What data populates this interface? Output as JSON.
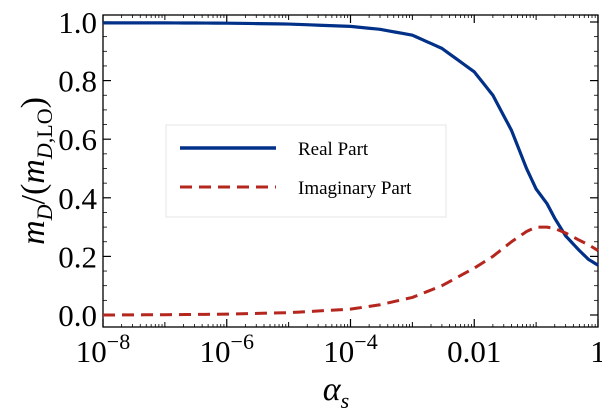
{
  "chart_data": {
    "type": "line",
    "xscale": "log",
    "xlim": [
      1e-08,
      1
    ],
    "ylim": [
      0,
      1
    ],
    "grid": false,
    "legend_position": "center-left",
    "xlabel": "α_s",
    "ylabel": "m_D/(m_D,LO)",
    "x_ticks": [
      {
        "value": 1e-08,
        "base": "10",
        "exp": "−8"
      },
      {
        "value": 1e-06,
        "base": "10",
        "exp": "−6"
      },
      {
        "value": 0.0001,
        "base": "10",
        "exp": "−4"
      },
      {
        "value": 0.01,
        "label": "0.01"
      },
      {
        "value": 1,
        "label": "1"
      }
    ],
    "y_ticks": [
      {
        "value": 0.0,
        "label": "0.0"
      },
      {
        "value": 0.2,
        "label": "0.2"
      },
      {
        "value": 0.4,
        "label": "0.4"
      },
      {
        "value": 0.6,
        "label": "0.6"
      },
      {
        "value": 0.8,
        "label": "0.8"
      },
      {
        "value": 1.0,
        "label": "1.0"
      }
    ],
    "series": [
      {
        "name": "Real Part",
        "color": "#003087",
        "style": "solid",
        "x": [
          1e-08,
          1e-07,
          1e-06,
          1e-05,
          0.0001,
          0.0003,
          0.001,
          0.003,
          0.01,
          0.02,
          0.04,
          0.07,
          0.1,
          0.15,
          0.2,
          0.3,
          0.5,
          0.7,
          1
        ],
        "y": [
          0.997,
          0.997,
          0.996,
          0.993,
          0.985,
          0.975,
          0.955,
          0.91,
          0.83,
          0.75,
          0.63,
          0.5,
          0.43,
          0.38,
          0.33,
          0.27,
          0.22,
          0.19,
          0.17
        ]
      },
      {
        "name": "Imaginary Part",
        "color": "#b5261e",
        "style": "dashed",
        "x": [
          1e-08,
          1e-07,
          1e-06,
          1e-05,
          0.0001,
          0.0003,
          0.001,
          0.003,
          0.01,
          0.02,
          0.04,
          0.07,
          0.1,
          0.15,
          0.2,
          0.3,
          0.5,
          0.7,
          1
        ],
        "y": [
          0.0,
          0.001,
          0.003,
          0.008,
          0.02,
          0.035,
          0.06,
          0.1,
          0.16,
          0.2,
          0.25,
          0.285,
          0.3,
          0.3,
          0.295,
          0.28,
          0.255,
          0.24,
          0.22
        ]
      }
    ]
  }
}
